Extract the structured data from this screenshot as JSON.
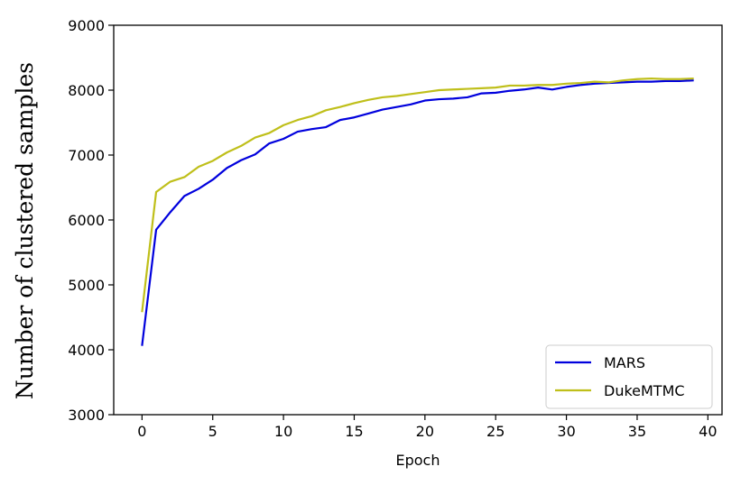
{
  "chart_data": {
    "type": "line",
    "title": "",
    "xlabel": "Epoch",
    "ylabel": "Number of clustered samples",
    "xlim": [
      -2,
      41
    ],
    "ylim": [
      3000,
      9000
    ],
    "xticks": [
      0,
      5,
      10,
      15,
      20,
      25,
      30,
      35,
      40
    ],
    "yticks": [
      3000,
      4000,
      5000,
      6000,
      7000,
      8000,
      9000
    ],
    "grid": false,
    "legend_position": "lower-right",
    "x": [
      0,
      1,
      2,
      3,
      4,
      5,
      6,
      7,
      8,
      9,
      10,
      11,
      12,
      13,
      14,
      15,
      16,
      17,
      18,
      19,
      20,
      21,
      22,
      23,
      24,
      25,
      26,
      27,
      28,
      29,
      30,
      31,
      32,
      33,
      34,
      35,
      36,
      37,
      38,
      39
    ],
    "series": [
      {
        "name": "MARS",
        "color": "#0000dd",
        "values": [
          4060,
          5850,
          6120,
          6370,
          6480,
          6620,
          6800,
          6920,
          7010,
          7180,
          7250,
          7360,
          7400,
          7430,
          7540,
          7580,
          7640,
          7700,
          7740,
          7780,
          7840,
          7860,
          7870,
          7890,
          7950,
          7960,
          7990,
          8010,
          8040,
          8010,
          8050,
          8080,
          8100,
          8110,
          8120,
          8130,
          8130,
          8140,
          8140,
          8150
        ]
      },
      {
        "name": "DukeMTMC",
        "color": "#bfbf1a",
        "values": [
          4580,
          6430,
          6590,
          6660,
          6820,
          6910,
          7040,
          7140,
          7270,
          7340,
          7460,
          7540,
          7600,
          7690,
          7740,
          7800,
          7850,
          7890,
          7910,
          7940,
          7970,
          8000,
          8010,
          8020,
          8030,
          8040,
          8070,
          8070,
          8080,
          8080,
          8100,
          8110,
          8130,
          8120,
          8150,
          8170,
          8180,
          8170,
          8170,
          8180
        ]
      }
    ]
  }
}
